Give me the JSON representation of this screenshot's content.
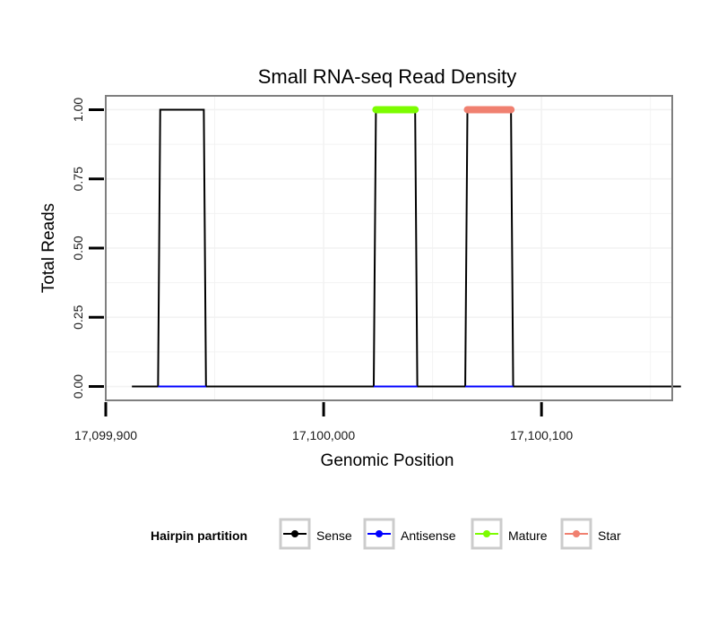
{
  "chart_data": {
    "type": "line",
    "title": "Small RNA-seq Read Density",
    "xlabel": "Genomic Position",
    "ylabel": "Total Reads",
    "xlim": [
      17099900,
      17100160
    ],
    "ylim": [
      -0.05,
      1.05
    ],
    "x_ticks": [
      17099900,
      17100000,
      17100100
    ],
    "x_tick_labels": [
      "17,099,900",
      "17,100,000",
      "17,100,100"
    ],
    "y_ticks": [
      0,
      0.25,
      0.5,
      0.75,
      1
    ],
    "y_tick_labels": [
      "0.00",
      "0.25",
      "0.50",
      "0.75",
      "1.00"
    ],
    "grid": true,
    "legend": {
      "title": "Hairpin partition",
      "position": "bottom",
      "entries": [
        "Sense",
        "Antisense",
        "Mature",
        "Star"
      ]
    },
    "series": [
      {
        "name": "Sense",
        "color": "#000000",
        "x": [
          17099912,
          17099924,
          17099925,
          17099945,
          17099946,
          17100023,
          17100024,
          17100042,
          17100043,
          17100065,
          17100066,
          17100086,
          17100087,
          17100164
        ],
        "y": [
          0,
          0,
          1,
          1,
          0,
          0,
          1,
          1,
          0,
          0,
          1,
          1,
          0,
          0
        ]
      },
      {
        "name": "Antisense",
        "color": "#0000ff",
        "x": [
          17099924,
          17099946,
          17100023,
          17100043,
          17100065,
          17100087
        ],
        "y": [
          0,
          0,
          0,
          0,
          0,
          0
        ],
        "segments": [
          [
            0,
            1
          ],
          [
            2,
            3
          ],
          [
            4,
            5
          ]
        ]
      },
      {
        "name": "Mature",
        "color": "#7cfc00",
        "x": [
          17100024,
          17100042
        ],
        "y": [
          1,
          1
        ]
      },
      {
        "name": "Star",
        "color": "#f08070",
        "x": [
          17100066,
          17100086
        ],
        "y": [
          1,
          1
        ]
      }
    ]
  }
}
